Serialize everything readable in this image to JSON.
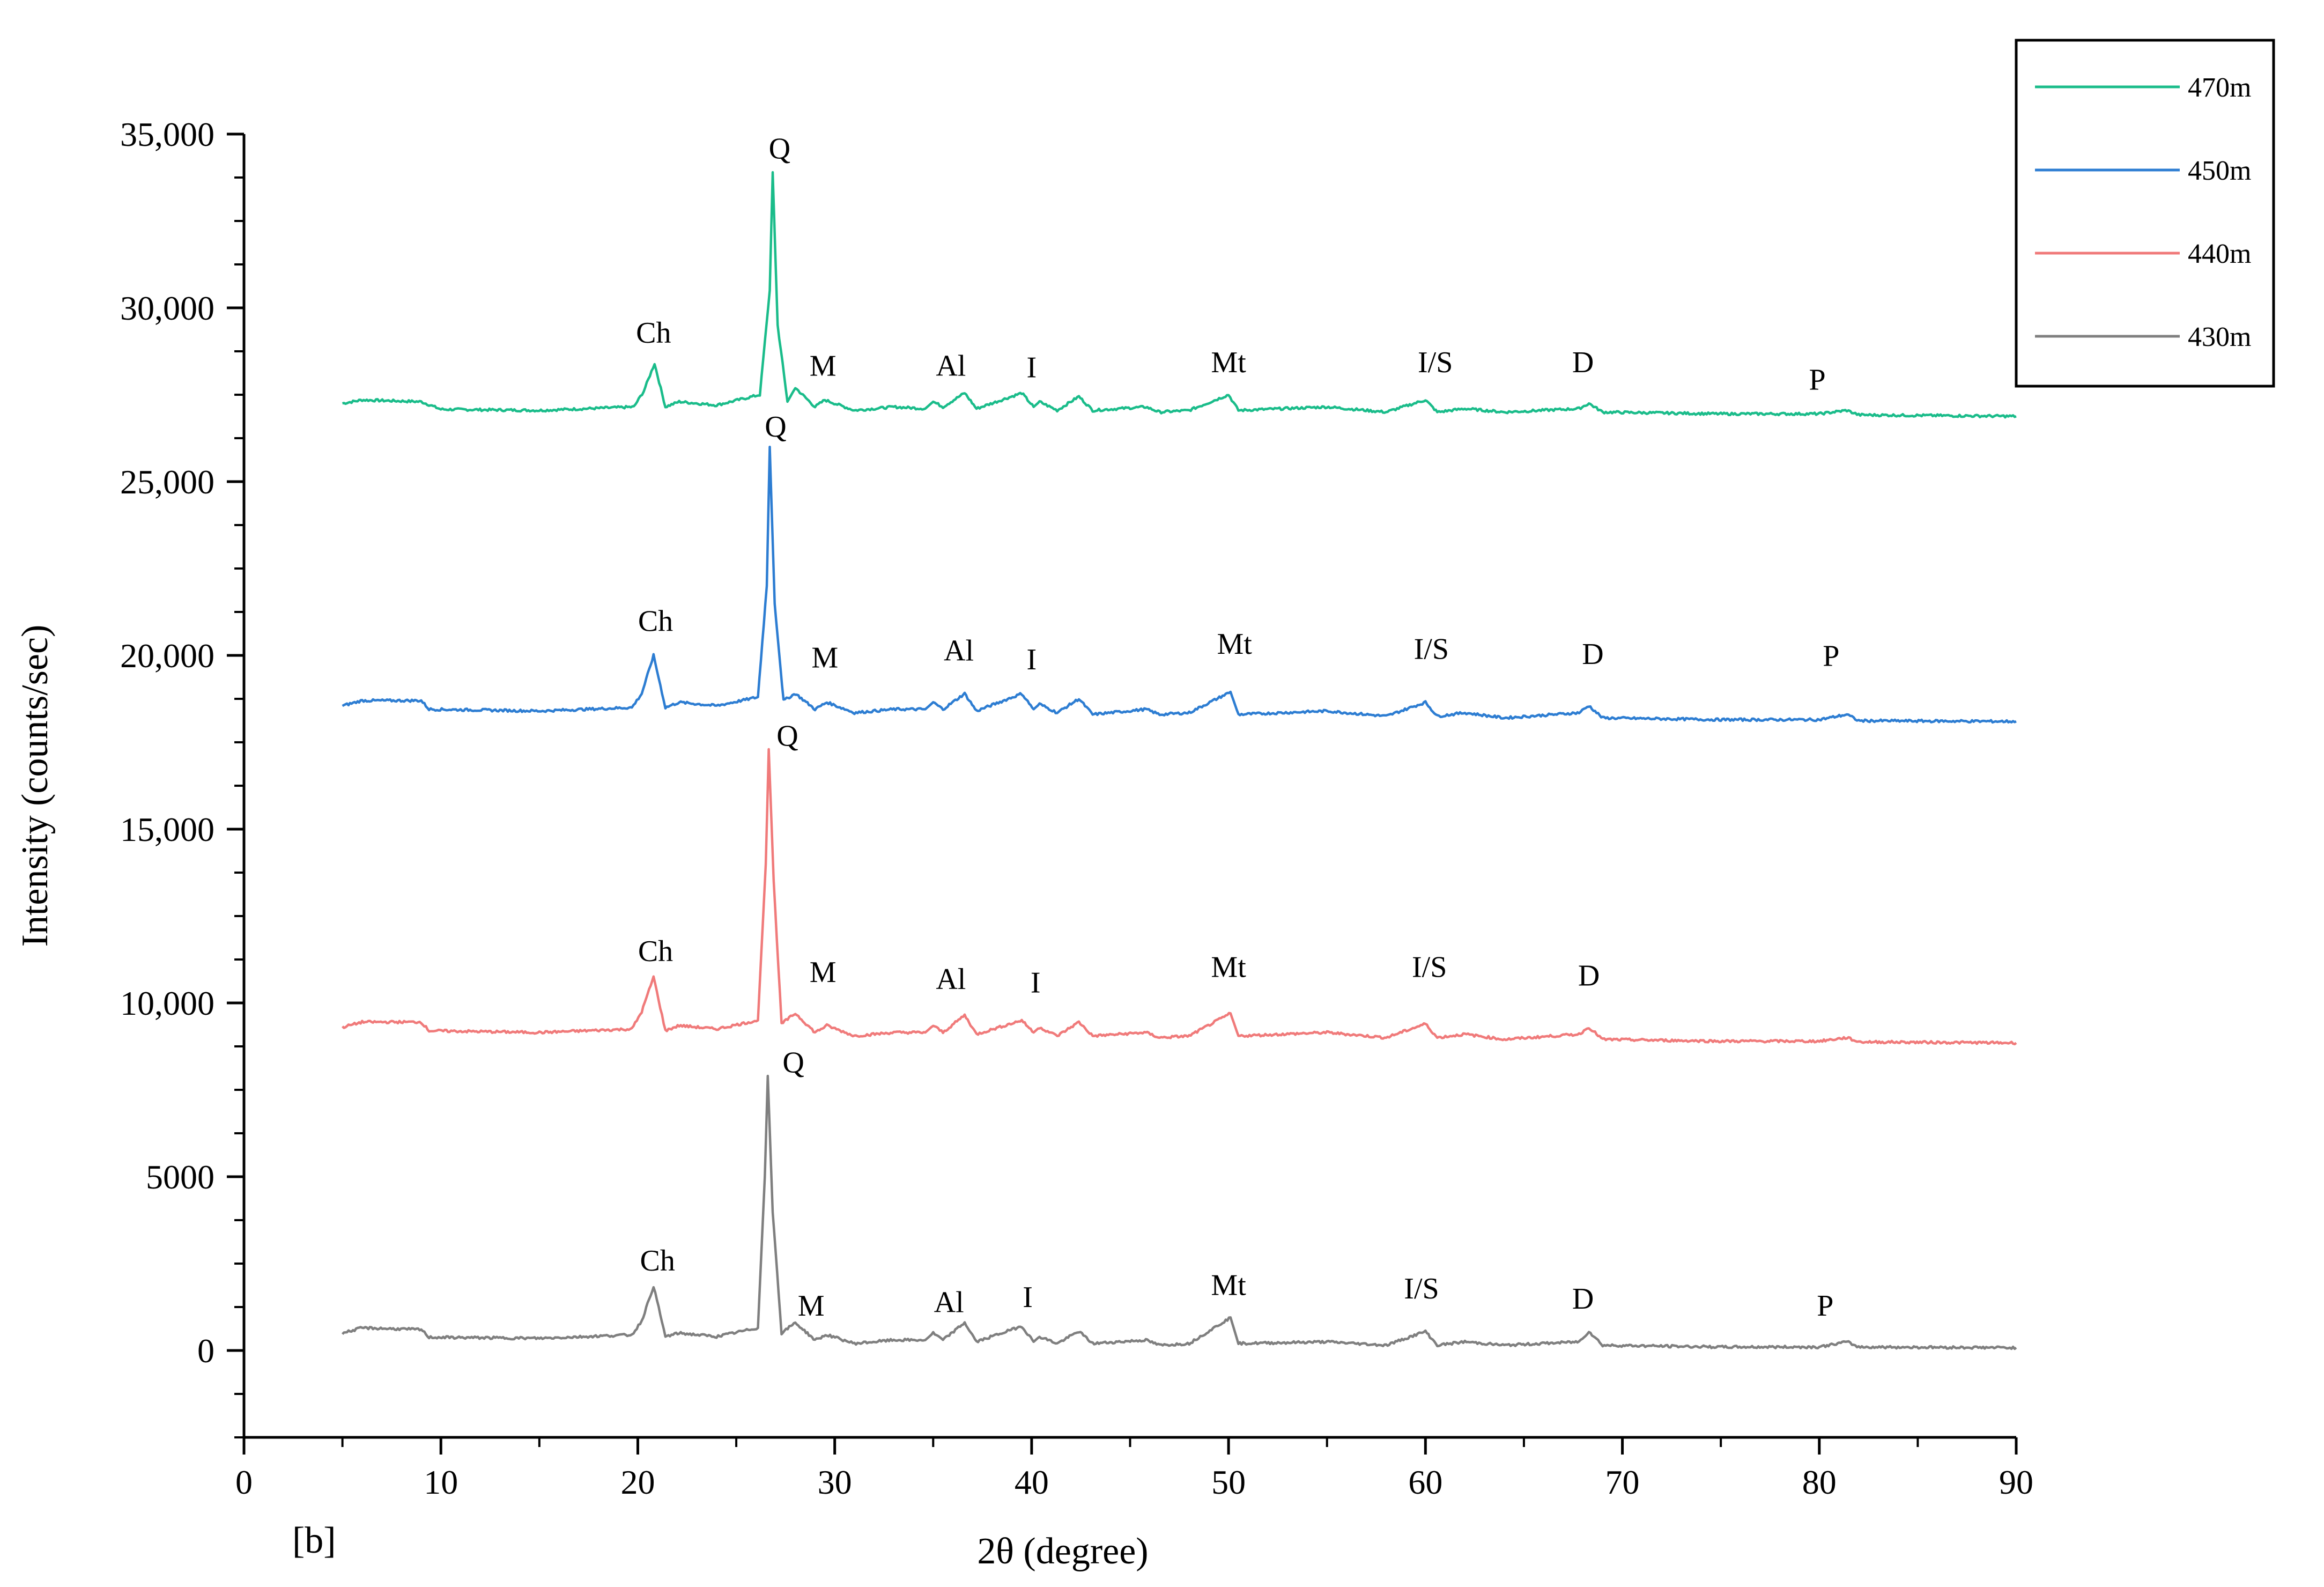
{
  "chart_data": {
    "type": "line",
    "panel_label": "[b]",
    "xlabel": "2θ (degree)",
    "ylabel": "Intensity (counts/sec)",
    "xlim": [
      0,
      90
    ],
    "ylim": [
      -2500,
      35000
    ],
    "x_ticks": [
      0,
      10,
      20,
      30,
      40,
      50,
      60,
      70,
      80,
      90
    ],
    "x_tick_labels": [
      "0",
      "10",
      "20",
      "30",
      "40",
      "50",
      "60",
      "70",
      "80",
      "90"
    ],
    "y_ticks": [
      0,
      5000,
      10000,
      15000,
      20000,
      25000,
      30000,
      35000
    ],
    "y_tick_labels": [
      "0",
      "5000",
      "10,000",
      "15,000",
      "20,000",
      "25,000",
      "30,000",
      "35,000"
    ],
    "legend_position": "top-right, outside plot",
    "series": [
      {
        "name": "470m",
        "color": "#1abc8a",
        "points": [
          [
            5,
            27250
          ],
          [
            6,
            27350
          ],
          [
            9,
            27300
          ],
          [
            10,
            27080
          ],
          [
            15,
            27050
          ],
          [
            19.8,
            27150
          ],
          [
            20.3,
            27600
          ],
          [
            20.85,
            28400
          ],
          [
            21.4,
            27150
          ],
          [
            22.1,
            27300
          ],
          [
            24,
            27200
          ],
          [
            26.2,
            27500
          ],
          [
            26.7,
            30500
          ],
          [
            26.85,
            33900
          ],
          [
            27.1,
            29500
          ],
          [
            27.6,
            27300
          ],
          [
            28,
            27700
          ],
          [
            29,
            27150
          ],
          [
            29.5,
            27350
          ],
          [
            31,
            27050
          ],
          [
            33,
            27150
          ],
          [
            34.6,
            27100
          ],
          [
            35,
            27300
          ],
          [
            35.5,
            27150
          ],
          [
            36.6,
            27550
          ],
          [
            37.2,
            27100
          ],
          [
            39.5,
            27550
          ],
          [
            40.1,
            27150
          ],
          [
            40.4,
            27300
          ],
          [
            41.3,
            27050
          ],
          [
            42.4,
            27450
          ],
          [
            43.1,
            27050
          ],
          [
            45.8,
            27150
          ],
          [
            46.5,
            27000
          ],
          [
            48,
            27050
          ],
          [
            50,
            27500
          ],
          [
            50.5,
            27050
          ],
          [
            55,
            27150
          ],
          [
            58,
            27000
          ],
          [
            60,
            27350
          ],
          [
            60.6,
            27000
          ],
          [
            62,
            27100
          ],
          [
            64,
            27000
          ],
          [
            67.8,
            27100
          ],
          [
            68.3,
            27250
          ],
          [
            69,
            27000
          ],
          [
            75,
            26950
          ],
          [
            80,
            26950
          ],
          [
            81.4,
            27050
          ],
          [
            82,
            26920
          ],
          [
            90,
            26880
          ]
        ]
      },
      {
        "name": "450m",
        "color": "#2d7dd2",
        "points": [
          [
            5,
            18550
          ],
          [
            6,
            18700
          ],
          [
            9,
            18700
          ],
          [
            9.4,
            18450
          ],
          [
            15,
            18400
          ],
          [
            19.7,
            18500
          ],
          [
            20.2,
            18900
          ],
          [
            20.8,
            20000
          ],
          [
            21.4,
            18500
          ],
          [
            22.1,
            18650
          ],
          [
            24,
            18550
          ],
          [
            26.1,
            18800
          ],
          [
            26.55,
            22000
          ],
          [
            26.7,
            26000
          ],
          [
            26.95,
            21500
          ],
          [
            27.4,
            18700
          ],
          [
            28,
            18900
          ],
          [
            29,
            18450
          ],
          [
            29.6,
            18650
          ],
          [
            31,
            18350
          ],
          [
            33,
            18450
          ],
          [
            34.6,
            18450
          ],
          [
            35,
            18650
          ],
          [
            35.5,
            18450
          ],
          [
            36.6,
            18900
          ],
          [
            37.2,
            18400
          ],
          [
            39.5,
            18900
          ],
          [
            40.1,
            18450
          ],
          [
            40.4,
            18600
          ],
          [
            41.3,
            18350
          ],
          [
            42.4,
            18750
          ],
          [
            43.1,
            18300
          ],
          [
            45.8,
            18450
          ],
          [
            46.5,
            18300
          ],
          [
            48,
            18350
          ],
          [
            50.1,
            18950
          ],
          [
            50.5,
            18300
          ],
          [
            55,
            18400
          ],
          [
            58,
            18250
          ],
          [
            60,
            18650
          ],
          [
            60.6,
            18250
          ],
          [
            62,
            18350
          ],
          [
            64,
            18200
          ],
          [
            67.8,
            18350
          ],
          [
            68.3,
            18550
          ],
          [
            69,
            18200
          ],
          [
            75,
            18150
          ],
          [
            80,
            18150
          ],
          [
            81.4,
            18300
          ],
          [
            82,
            18120
          ],
          [
            90,
            18100
          ]
        ]
      },
      {
        "name": "440m",
        "color": "#f07a7a",
        "points": [
          [
            5,
            9300
          ],
          [
            6,
            9450
          ],
          [
            9,
            9450
          ],
          [
            9.4,
            9200
          ],
          [
            15,
            9150
          ],
          [
            19.7,
            9250
          ],
          [
            20.2,
            9750
          ],
          [
            20.8,
            10750
          ],
          [
            21.4,
            9200
          ],
          [
            22.1,
            9350
          ],
          [
            24,
            9250
          ],
          [
            26.1,
            9500
          ],
          [
            26.5,
            14000
          ],
          [
            26.65,
            17300
          ],
          [
            26.9,
            13500
          ],
          [
            27.3,
            9400
          ],
          [
            28,
            9700
          ],
          [
            29,
            9150
          ],
          [
            29.6,
            9350
          ],
          [
            31,
            9050
          ],
          [
            33,
            9150
          ],
          [
            34.6,
            9150
          ],
          [
            35,
            9350
          ],
          [
            35.5,
            9150
          ],
          [
            36.6,
            9650
          ],
          [
            37.2,
            9100
          ],
          [
            39.5,
            9500
          ],
          [
            40.1,
            9150
          ],
          [
            40.4,
            9300
          ],
          [
            41.3,
            9050
          ],
          [
            42.4,
            9450
          ],
          [
            43.1,
            9050
          ],
          [
            45.8,
            9150
          ],
          [
            46.5,
            9000
          ],
          [
            48,
            9050
          ],
          [
            50.1,
            9700
          ],
          [
            50.5,
            9050
          ],
          [
            55,
            9150
          ],
          [
            58,
            9000
          ],
          [
            60,
            9400
          ],
          [
            60.6,
            9000
          ],
          [
            62,
            9100
          ],
          [
            64,
            8950
          ],
          [
            67.8,
            9100
          ],
          [
            68.3,
            9300
          ],
          [
            69,
            8950
          ],
          [
            75,
            8900
          ],
          [
            80,
            8900
          ],
          [
            81.4,
            9000
          ],
          [
            82,
            8880
          ],
          [
            90,
            8850
          ]
        ]
      },
      {
        "name": "430m",
        "color": "#7f7f7f",
        "points": [
          [
            5,
            500
          ],
          [
            6,
            650
          ],
          [
            9,
            600
          ],
          [
            9.4,
            380
          ],
          [
            15,
            350
          ],
          [
            19.7,
            450
          ],
          [
            20.2,
            850
          ],
          [
            20.8,
            1850
          ],
          [
            21.4,
            400
          ],
          [
            22.1,
            500
          ],
          [
            24,
            400
          ],
          [
            26.1,
            650
          ],
          [
            26.45,
            5000
          ],
          [
            26.6,
            7900
          ],
          [
            26.85,
            4000
          ],
          [
            27.3,
            500
          ],
          [
            28,
            800
          ],
          [
            29,
            300
          ],
          [
            29.6,
            450
          ],
          [
            31,
            200
          ],
          [
            33,
            300
          ],
          [
            34.6,
            300
          ],
          [
            35,
            500
          ],
          [
            35.5,
            300
          ],
          [
            36.6,
            800
          ],
          [
            37.2,
            250
          ],
          [
            39.5,
            700
          ],
          [
            40.1,
            250
          ],
          [
            40.4,
            400
          ],
          [
            41.3,
            200
          ],
          [
            42.4,
            550
          ],
          [
            43.1,
            200
          ],
          [
            45.8,
            300
          ],
          [
            46.5,
            150
          ],
          [
            48,
            200
          ],
          [
            50.1,
            950
          ],
          [
            50.5,
            200
          ],
          [
            55,
            250
          ],
          [
            58,
            150
          ],
          [
            60,
            550
          ],
          [
            60.6,
            150
          ],
          [
            62,
            250
          ],
          [
            64,
            150
          ],
          [
            67.8,
            250
          ],
          [
            68.3,
            550
          ],
          [
            69,
            150
          ],
          [
            75,
            100
          ],
          [
            80,
            100
          ],
          [
            81.4,
            250
          ],
          [
            82,
            100
          ],
          [
            90,
            80
          ]
        ]
      }
    ],
    "annotations": [
      {
        "text": "Q",
        "x": 27.2,
        "y": 34300,
        "series": "470m"
      },
      {
        "text": "Ch",
        "x": 20.8,
        "y": 29000,
        "series": "470m"
      },
      {
        "text": "M",
        "x": 29.4,
        "y": 28050,
        "series": "470m"
      },
      {
        "text": "Al",
        "x": 35.9,
        "y": 28050,
        "series": "470m"
      },
      {
        "text": "I",
        "x": 40.0,
        "y": 28000,
        "series": "470m"
      },
      {
        "text": "Mt",
        "x": 50.0,
        "y": 28150,
        "series": "470m"
      },
      {
        "text": "I/S",
        "x": 60.5,
        "y": 28150,
        "series": "470m"
      },
      {
        "text": "D",
        "x": 68.0,
        "y": 28150,
        "series": "470m"
      },
      {
        "text": "P",
        "x": 79.9,
        "y": 27650,
        "series": "470m"
      },
      {
        "text": "Q",
        "x": 27.0,
        "y": 26300,
        "series": "450m"
      },
      {
        "text": "Ch",
        "x": 20.9,
        "y": 20700,
        "series": "450m"
      },
      {
        "text": "M",
        "x": 29.5,
        "y": 19650,
        "series": "450m"
      },
      {
        "text": "Al",
        "x": 36.3,
        "y": 19850,
        "series": "450m"
      },
      {
        "text": "I",
        "x": 40.0,
        "y": 19600,
        "series": "450m"
      },
      {
        "text": "Mt",
        "x": 50.3,
        "y": 20050,
        "series": "450m"
      },
      {
        "text": "I/S",
        "x": 60.3,
        "y": 19900,
        "series": "450m"
      },
      {
        "text": "D",
        "x": 68.5,
        "y": 19750,
        "series": "450m"
      },
      {
        "text": "P",
        "x": 80.6,
        "y": 19700,
        "series": "450m"
      },
      {
        "text": "Q",
        "x": 27.6,
        "y": 17400,
        "series": "440m"
      },
      {
        "text": "Ch",
        "x": 20.9,
        "y": 11200,
        "series": "440m"
      },
      {
        "text": "M",
        "x": 29.4,
        "y": 10600,
        "series": "440m"
      },
      {
        "text": "Al",
        "x": 35.9,
        "y": 10400,
        "series": "440m"
      },
      {
        "text": "I",
        "x": 40.2,
        "y": 10300,
        "series": "440m"
      },
      {
        "text": "Mt",
        "x": 50.0,
        "y": 10750,
        "series": "440m"
      },
      {
        "text": "I/S",
        "x": 60.2,
        "y": 10750,
        "series": "440m"
      },
      {
        "text": "D",
        "x": 68.3,
        "y": 10500,
        "series": "440m"
      },
      {
        "text": "Q",
        "x": 27.9,
        "y": 8000,
        "series": "430m"
      },
      {
        "text": "Ch",
        "x": 21.0,
        "y": 2300,
        "series": "430m"
      },
      {
        "text": "M",
        "x": 28.8,
        "y": 1000,
        "series": "430m"
      },
      {
        "text": "Al",
        "x": 35.8,
        "y": 1100,
        "series": "430m"
      },
      {
        "text": "I",
        "x": 39.8,
        "y": 1250,
        "series": "430m"
      },
      {
        "text": "Mt",
        "x": 50.0,
        "y": 1600,
        "series": "430m"
      },
      {
        "text": "I/S",
        "x": 59.8,
        "y": 1500,
        "series": "430m"
      },
      {
        "text": "D",
        "x": 68.0,
        "y": 1200,
        "series": "430m"
      },
      {
        "text": "P",
        "x": 80.3,
        "y": 1000,
        "series": "430m"
      }
    ]
  }
}
